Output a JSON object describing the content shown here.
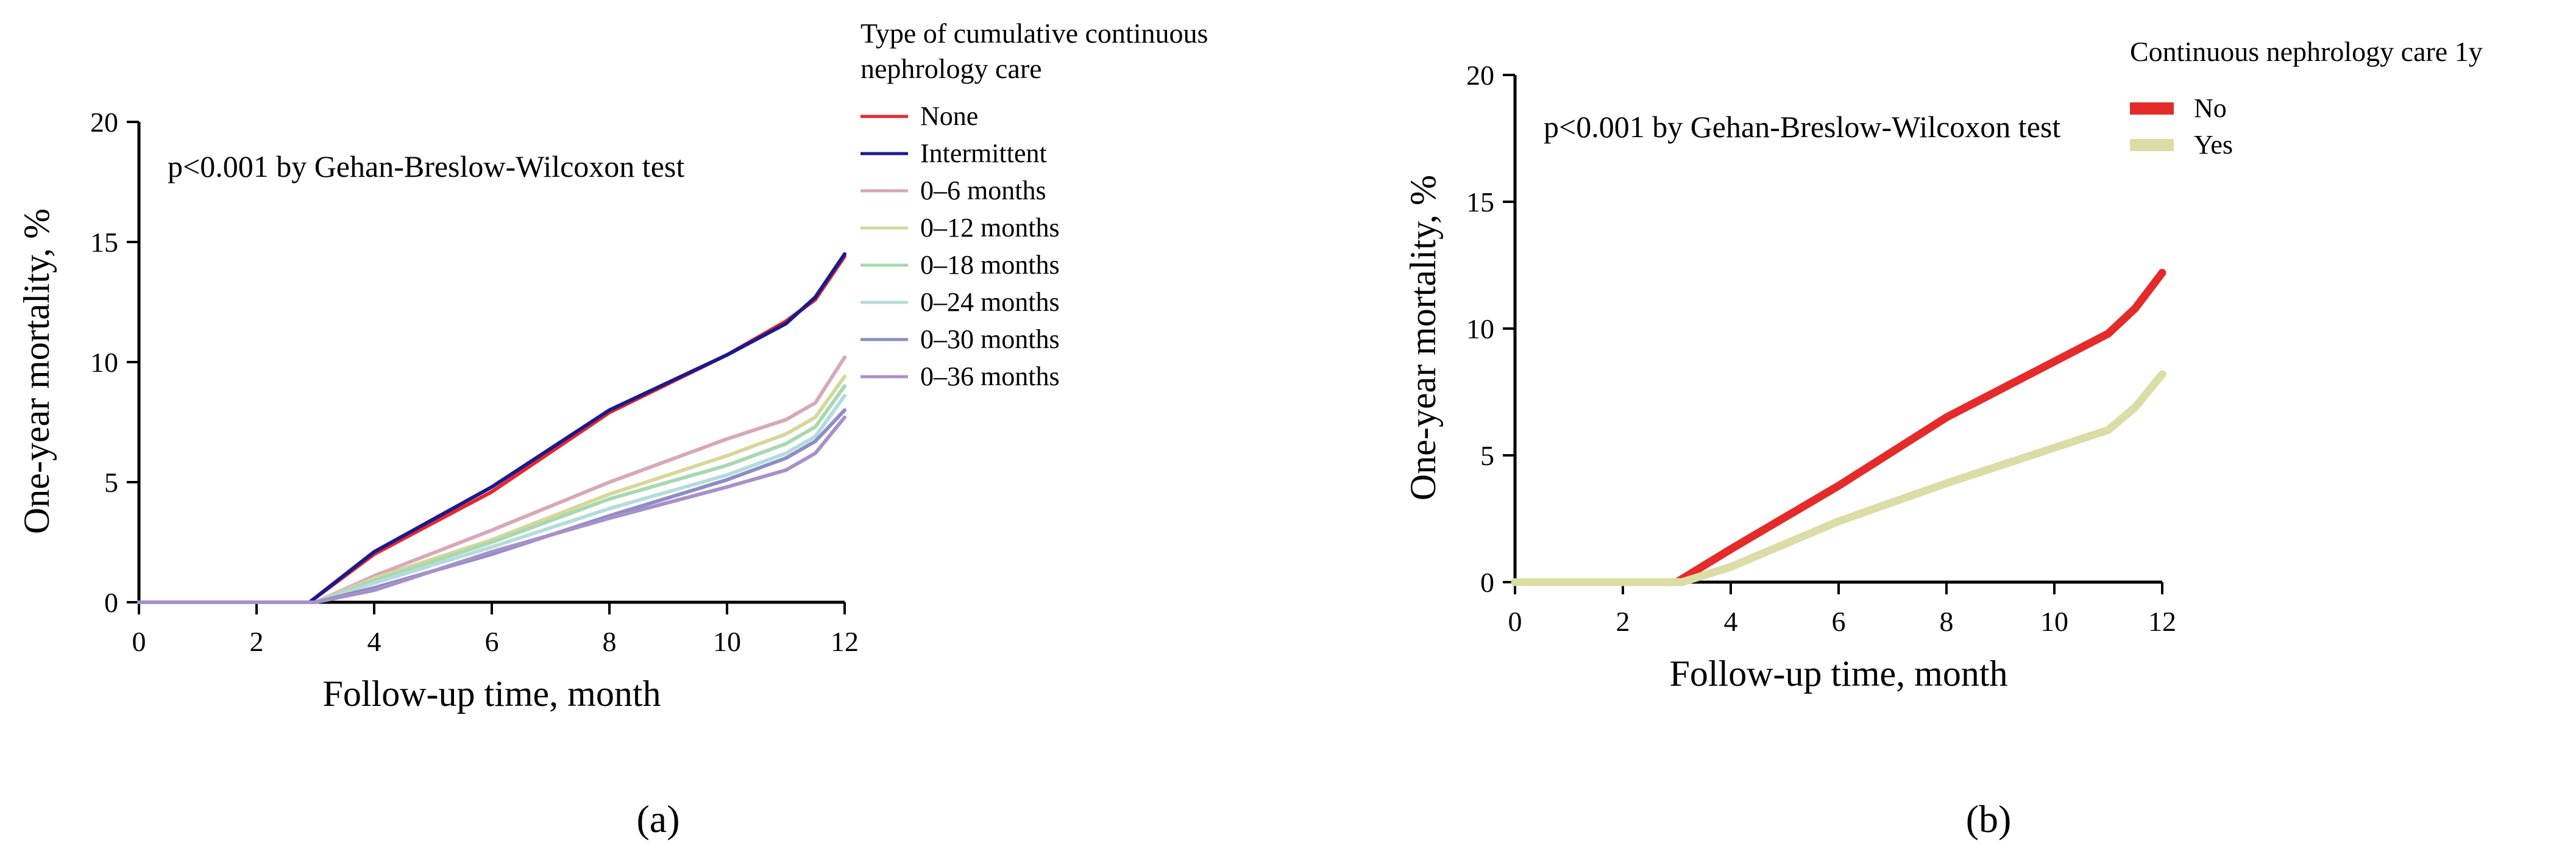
{
  "chart_data": [
    {
      "type": "line",
      "panel_label": "(a)",
      "title": "",
      "annotation": "p<0.001 by Gehan-Breslow-Wilcoxon test",
      "xlabel": "Follow-up time, month",
      "ylabel": "One-year mortality, %",
      "xlim": [
        0,
        12
      ],
      "ylim": [
        0,
        20
      ],
      "xticks": [
        0,
        2,
        4,
        6,
        8,
        10,
        12
      ],
      "yticks": [
        0,
        5,
        10,
        15,
        20
      ],
      "grid": false,
      "legend_title": "Type of cumulative continuous nephrology care",
      "legend_title_lines": [
        "Type of cumulative continuous",
        "nephrology care"
      ],
      "legend_position": "right",
      "series": [
        {
          "name": "None",
          "color": "#e8262b",
          "x": [
            0,
            2.9,
            4,
            6,
            8,
            10,
            11,
            11.5,
            12
          ],
          "values": [
            0,
            0,
            2.0,
            4.6,
            7.9,
            10.3,
            11.7,
            12.6,
            14.4
          ]
        },
        {
          "name": "Intermittent",
          "color": "#1a1a8c",
          "x": [
            0,
            2.9,
            4,
            6,
            8,
            10,
            11,
            11.5,
            12
          ],
          "values": [
            0,
            0,
            2.1,
            4.8,
            8.0,
            10.3,
            11.6,
            12.7,
            14.5
          ]
        },
        {
          "name": "0–6 months",
          "color": "#d8a8b8",
          "x": [
            0,
            3.0,
            4,
            6,
            8,
            10,
            11,
            11.5,
            12
          ],
          "values": [
            0,
            0,
            1.1,
            3.0,
            5.0,
            6.8,
            7.6,
            8.3,
            10.2
          ]
        },
        {
          "name": "0–12 months",
          "color": "#d6d79a",
          "x": [
            0,
            3.0,
            4,
            6,
            8,
            10,
            11,
            11.5,
            12
          ],
          "values": [
            0,
            0,
            1.0,
            2.6,
            4.5,
            6.1,
            7.0,
            7.7,
            9.4
          ]
        },
        {
          "name": "0–18 months",
          "color": "#a8d8b0",
          "x": [
            0,
            3.0,
            4,
            6,
            8,
            10,
            11,
            11.5,
            12
          ],
          "values": [
            0,
            0,
            0.9,
            2.5,
            4.3,
            5.7,
            6.6,
            7.3,
            9.0
          ]
        },
        {
          "name": "0–24 months",
          "color": "#b4dcdc",
          "x": [
            0,
            3.0,
            4,
            6,
            8,
            10,
            11,
            11.5,
            12
          ],
          "values": [
            0,
            0,
            0.8,
            2.3,
            3.9,
            5.3,
            6.2,
            6.9,
            8.6
          ]
        },
        {
          "name": "0–30 months",
          "color": "#8c8cc8",
          "x": [
            0,
            3.0,
            4,
            6,
            8,
            10,
            11,
            11.5,
            12
          ],
          "values": [
            0,
            0,
            0.6,
            2.0,
            3.6,
            5.1,
            6.0,
            6.7,
            8.0
          ]
        },
        {
          "name": "0–36 months",
          "color": "#a890c8",
          "x": [
            0,
            3.0,
            4,
            6,
            8,
            10,
            11,
            11.5,
            12
          ],
          "values": [
            0,
            0,
            0.5,
            2.1,
            3.5,
            4.8,
            5.5,
            6.2,
            7.7
          ]
        }
      ]
    },
    {
      "type": "line",
      "panel_label": "(b)",
      "title": "",
      "annotation": "p<0.001 by Gehan-Breslow-Wilcoxon test",
      "xlabel": "Follow-up time, month",
      "ylabel": "One-year mortality, %",
      "xlim": [
        0,
        12
      ],
      "ylim": [
        0,
        20
      ],
      "xticks": [
        0,
        2,
        4,
        6,
        8,
        10,
        12
      ],
      "yticks": [
        0,
        5,
        10,
        15,
        20
      ],
      "grid": false,
      "legend_title": "Continuous nephrology care   1y",
      "legend_position": "top-right",
      "series": [
        {
          "name": "No",
          "color": "#e52a2a",
          "x": [
            0,
            3.0,
            4,
            6,
            8,
            10,
            11,
            11.5,
            12
          ],
          "values": [
            0,
            0,
            1.3,
            3.8,
            6.5,
            8.7,
            9.8,
            10.8,
            12.2
          ]
        },
        {
          "name": "Yes",
          "color": "#dcdca6",
          "x": [
            0,
            3.1,
            4,
            6,
            8,
            10,
            11,
            11.5,
            12
          ],
          "values": [
            0,
            0,
            0.6,
            2.4,
            3.9,
            5.3,
            6.0,
            6.9,
            8.2
          ]
        }
      ]
    }
  ]
}
